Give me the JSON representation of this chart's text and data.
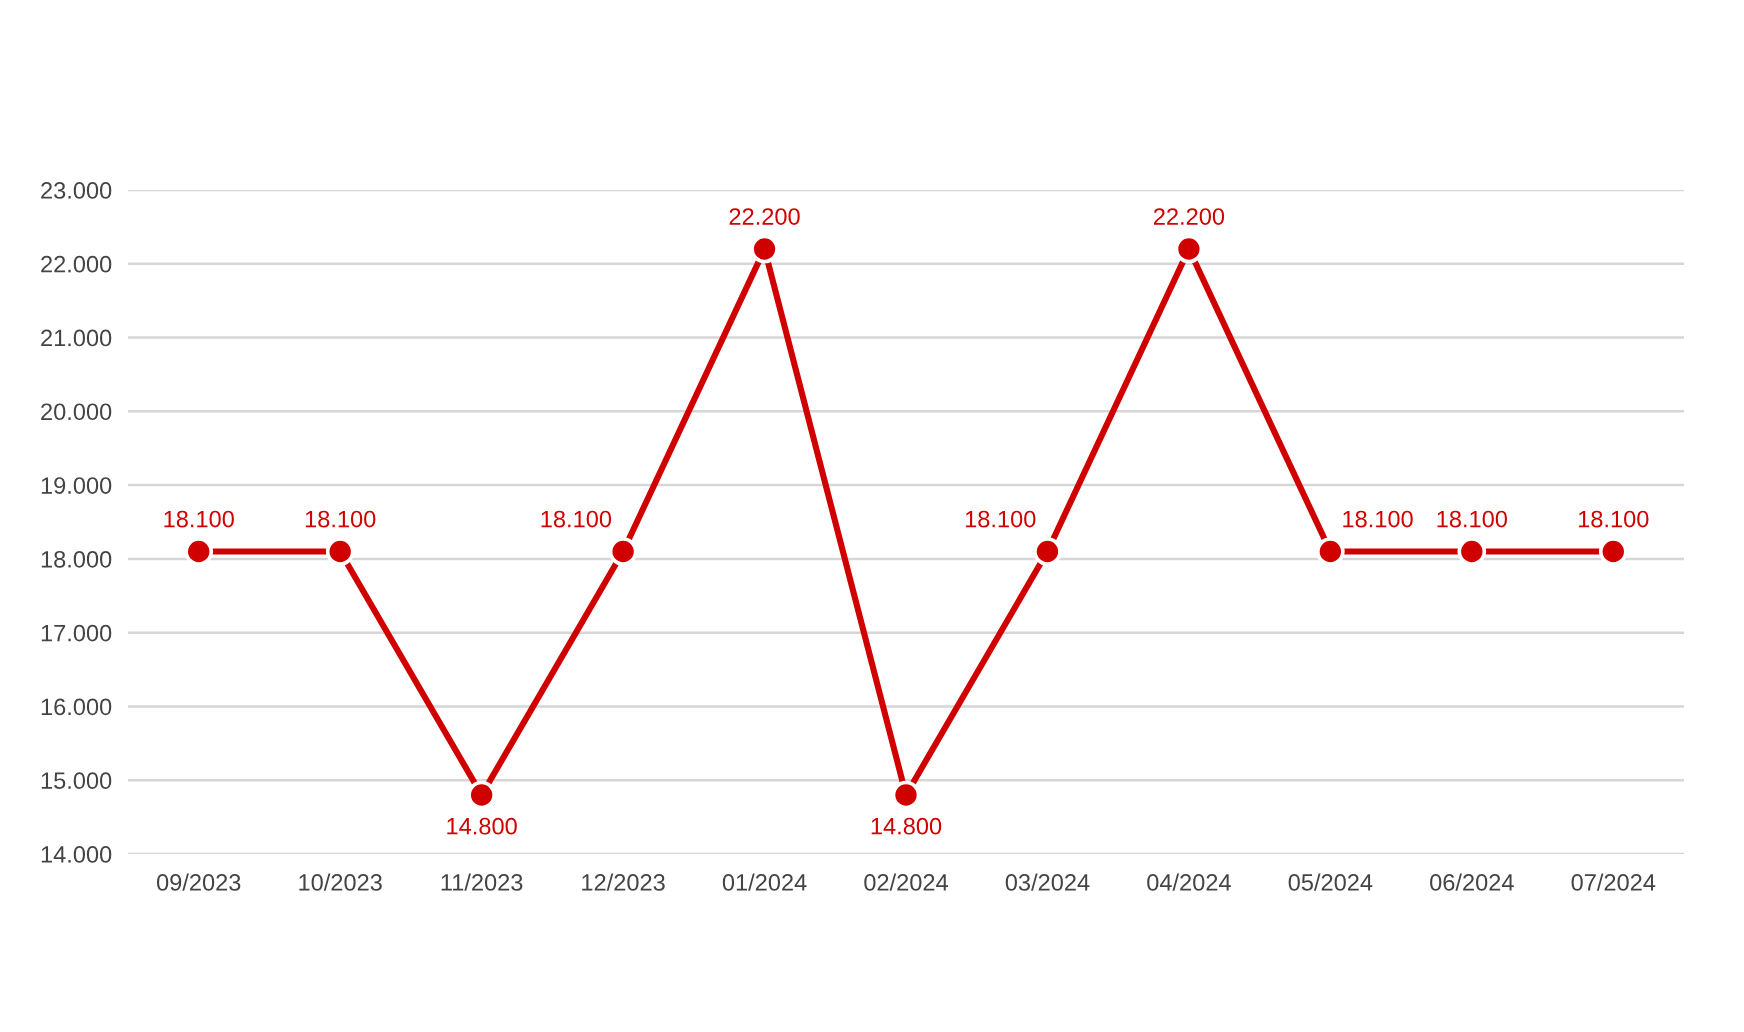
{
  "chart_data": {
    "type": "line",
    "categories": [
      "09/2023",
      "10/2023",
      "11/2023",
      "12/2023",
      "01/2024",
      "02/2024",
      "03/2024",
      "04/2024",
      "05/2024",
      "06/2024",
      "07/2024"
    ],
    "series": [
      {
        "color": "#d00000",
        "values": [
          18100,
          18100,
          14800,
          18100,
          22200,
          14800,
          18100,
          22200,
          18100,
          18100,
          18100
        ],
        "value_labels": [
          "18.100",
          "18.100",
          "14.800",
          "18.100",
          "22.200",
          "14.800",
          "18.100",
          "22.200",
          "18.100",
          "18.100",
          "18.100"
        ]
      }
    ],
    "ylim": [
      14000,
      23000
    ],
    "yticks": [
      {
        "value": 14000,
        "label": "14.000"
      },
      {
        "value": 15000,
        "label": "15.000"
      },
      {
        "value": 16000,
        "label": "16.000"
      },
      {
        "value": 17000,
        "label": "17.000"
      },
      {
        "value": 18000,
        "label": "18.000"
      },
      {
        "value": 19000,
        "label": "19.000"
      },
      {
        "value": 20000,
        "label": "20.000"
      },
      {
        "value": 21000,
        "label": "21.000"
      },
      {
        "value": 22000,
        "label": "22.000"
      },
      {
        "value": 23000,
        "label": "23.000"
      }
    ],
    "grid": "y",
    "marker": "circle",
    "line_style": "solid"
  }
}
